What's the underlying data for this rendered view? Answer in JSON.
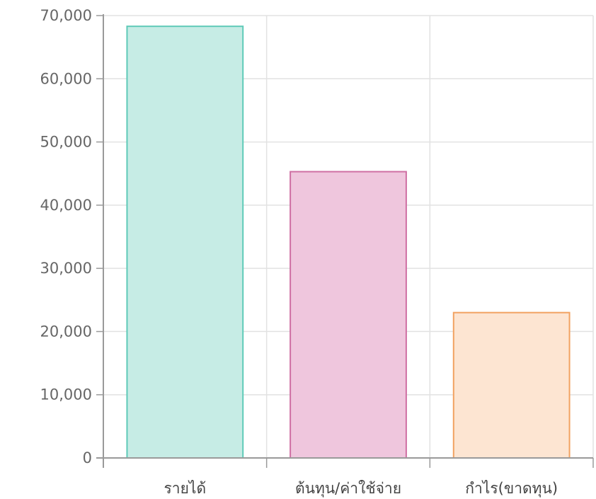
{
  "chart_data": {
    "type": "bar",
    "categories": [
      "รายได้",
      "ต้นทุน/ค่าใช้จ่าย",
      "กำไร(ขาดทุน)"
    ],
    "values": [
      68300,
      45300,
      23000
    ],
    "ylim": [
      0,
      70000
    ],
    "yticks": [
      0,
      10000,
      20000,
      30000,
      40000,
      50000,
      60000,
      70000
    ],
    "ytick_labels": [
      "0",
      "10,000",
      "20,000",
      "30,000",
      "40,000",
      "50,000",
      "60,000",
      "70,000"
    ],
    "grid": true,
    "legend": "none",
    "colors": {
      "fills": [
        "#c6ece5",
        "#efc6dd",
        "#fde5d2"
      ],
      "strokes": [
        "#5fcab8",
        "#cf6fa3",
        "#f2a261"
      ],
      "grid": "#e2e2e2",
      "axis": "#9a9a9a"
    }
  }
}
